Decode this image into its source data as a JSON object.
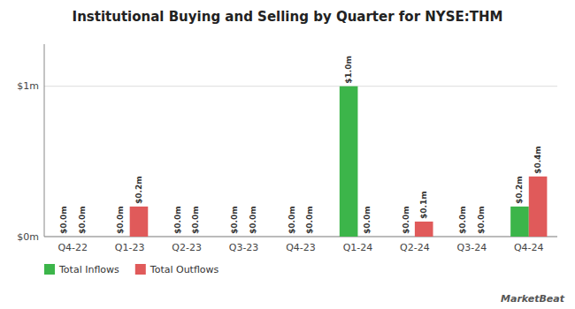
{
  "chart_data": {
    "type": "bar",
    "title": "Institutional Buying and Selling by Quarter for NYSE:THM",
    "categories": [
      "Q4-22",
      "Q1-23",
      "Q2-23",
      "Q3-23",
      "Q4-23",
      "Q1-24",
      "Q2-24",
      "Q3-24",
      "Q4-24"
    ],
    "series": [
      {
        "name": "Total Inflows",
        "color": "#3cb54a",
        "values": [
          0.0,
          0.0,
          0.0,
          0.0,
          0.0,
          1.0,
          0.0,
          0.0,
          0.2
        ],
        "value_labels": [
          "$0.0m",
          "$0.0m",
          "$0.0m",
          "$0.0m",
          "$0.0m",
          "$1.0m",
          "$0.0m",
          "$0.0m",
          "$0.2m"
        ]
      },
      {
        "name": "Total Outflows",
        "color": "#e05a5a",
        "values": [
          0.0,
          0.2,
          0.0,
          0.0,
          0.0,
          0.0,
          0.1,
          0.0,
          0.4
        ],
        "value_labels": [
          "$0.0m",
          "$0.2m",
          "$0.0m",
          "$0.0m",
          "$0.0m",
          "$0.0m",
          "$0.1m",
          "$0.0m",
          "$0.4m"
        ]
      }
    ],
    "ylim": [
      0,
      1.28
    ],
    "yticks": [
      {
        "value": 0,
        "label": "$0m"
      },
      {
        "value": 1.0,
        "label": "$1m"
      }
    ],
    "grid": true,
    "data_labels": true,
    "legend": "lower left",
    "annotations": [
      {
        "text": "MarketBeat"
      }
    ]
  }
}
